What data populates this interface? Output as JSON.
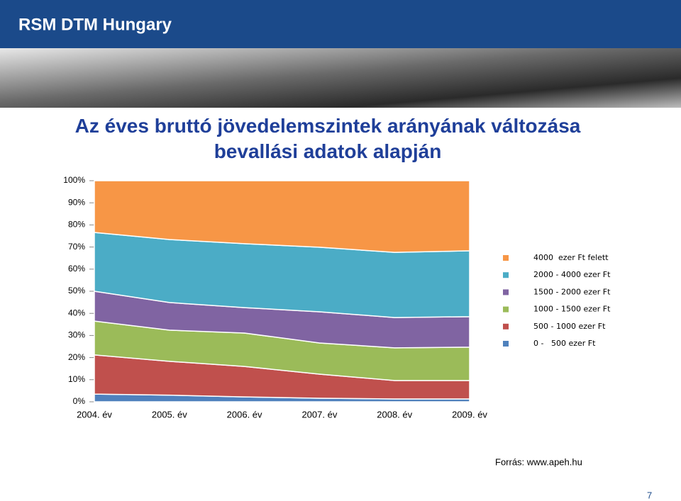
{
  "header": {
    "logo": "RSM DTM Hungary"
  },
  "chart_data": {
    "type": "stacked-area",
    "title": "Az éves bruttó jövedelemszintek arányának változása bevallási adatok alapján",
    "categories": [
      "2004. év",
      "2005. év",
      "2006. év",
      "2007. év",
      "2008. év",
      "2009. év"
    ],
    "series": [
      {
        "name": "0 -   500 ezer Ft",
        "color": "#4f81bd",
        "values": [
          3.5,
          3,
          2.2,
          1.6,
          1.3,
          1.3
        ]
      },
      {
        "name": "500 - 1000 ezer Ft",
        "color": "#c0504d",
        "values": [
          17.7,
          15.3,
          13.8,
          10.9,
          8.3,
          8.3
        ]
      },
      {
        "name": "1000 - 1500 ezer Ft",
        "color": "#9bbb59",
        "values": [
          15.3,
          14.1,
          15.1,
          14.1,
          14.8,
          15.1
        ]
      },
      {
        "name": "1500 - 2000 ezer Ft",
        "color": "#8064a2",
        "values": [
          13.5,
          12.5,
          11.5,
          14.1,
          13.7,
          13.8
        ]
      },
      {
        "name": "2000 - 4000 ezer Ft",
        "color": "#4bacc6",
        "values": [
          26.6,
          28.5,
          28.9,
          29.2,
          29.5,
          29.8
        ]
      },
      {
        "name": "4000  ezer Ft felett",
        "color": "#f79646",
        "values": [
          23.4,
          26.6,
          28.5,
          30.1,
          32.4,
          31.7
        ]
      }
    ],
    "ylim": [
      0,
      100
    ],
    "yticks": [
      {
        "value": 0,
        "label": "0%"
      },
      {
        "value": 10,
        "label": "10%"
      },
      {
        "value": 20,
        "label": "20%"
      },
      {
        "value": 30,
        "label": "30%"
      },
      {
        "value": 40,
        "label": "40%"
      },
      {
        "value": 50,
        "label": "50%"
      },
      {
        "value": 60,
        "label": "60%"
      },
      {
        "value": 70,
        "label": "70%"
      },
      {
        "value": 80,
        "label": "80%"
      },
      {
        "value": 90,
        "label": "90%"
      },
      {
        "value": 100,
        "label": "100%"
      }
    ],
    "legend": "right"
  },
  "footer": {
    "source": "Forrás: www.apeh.hu",
    "page": "7"
  }
}
